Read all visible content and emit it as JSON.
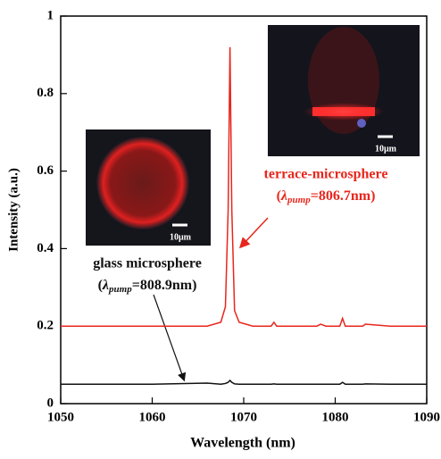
{
  "chart_data": {
    "type": "line",
    "x_label": "Wavelength  (nm)",
    "y_label": "Intensity (a.u.)",
    "x": [
      1050,
      1060,
      1066,
      1067.5,
      1068,
      1068.3,
      1068.5,
      1068.7,
      1069,
      1069.5,
      1071,
      1073,
      1073.3,
      1073.6,
      1076,
      1078,
      1078.4,
      1079,
      1080.5,
      1080.8,
      1081.1,
      1083,
      1083.3,
      1086,
      1090
    ],
    "series": [
      {
        "name": "terrace-microsphere",
        "color": "#e8261c",
        "values": [
          0.2,
          0.2,
          0.2,
          0.21,
          0.25,
          0.5,
          0.92,
          0.5,
          0.24,
          0.21,
          0.2,
          0.2,
          0.21,
          0.2,
          0.2,
          0.2,
          0.205,
          0.2,
          0.2,
          0.22,
          0.2,
          0.2,
          0.205,
          0.2,
          0.2
        ]
      },
      {
        "name": "glass microsphere",
        "color": "#111111",
        "values": [
          0.05,
          0.05,
          0.053,
          0.05,
          0.052,
          0.055,
          0.06,
          0.055,
          0.051,
          0.05,
          0.05,
          0.05,
          0.051,
          0.05,
          0.05,
          0.05,
          0.05,
          0.05,
          0.05,
          0.055,
          0.05,
          0.05,
          0.051,
          0.05,
          0.05
        ]
      }
    ],
    "xlim": [
      1050,
      1090
    ],
    "xticks": [
      1050,
      1060,
      1070,
      1080,
      1090
    ],
    "ylim": [
      0,
      1
    ],
    "yticks": [
      0,
      0.2,
      0.4,
      0.6,
      0.8,
      1
    ],
    "annotations": [
      {
        "parts": [
          "(",
          "λ",
          "pump",
          "=806.7nm)"
        ]
      },
      {
        "parts": [
          "(",
          "λ",
          "pump",
          "=808.9nm)"
        ]
      }
    ],
    "scale_bars": [
      "10μm",
      "10μm"
    ]
  }
}
